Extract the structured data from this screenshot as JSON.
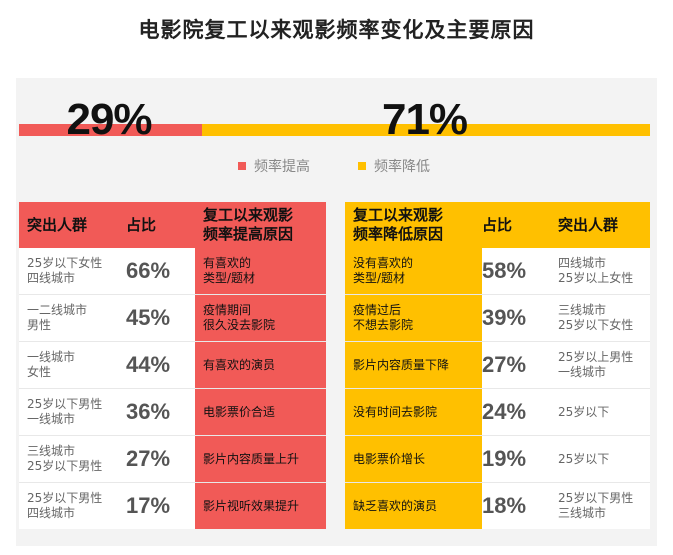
{
  "title": "电影院复工以来观影频率变化及主要原因",
  "chart_data": {
    "type": "bar",
    "orientation": "horizontal-stacked",
    "series": [
      {
        "name": "频率提高",
        "value": 29,
        "label": "29%",
        "color": "#f15a57"
      },
      {
        "name": "频率降低",
        "value": 71,
        "label": "71%",
        "color": "#ffc000"
      }
    ],
    "xlim": [
      0,
      100
    ],
    "legend_placement": "center"
  },
  "legend": [
    {
      "label": "频率提高",
      "color": "#f15a57"
    },
    {
      "label": "频率降低",
      "color": "#ffc000"
    }
  ],
  "left_table": {
    "headers": {
      "group": "突出人群",
      "share": "占比",
      "reason": "复工以来观影\n频率提高原因"
    },
    "rows": [
      {
        "group": "25岁以下女性\n四线城市",
        "share": "66%",
        "reason": "有喜欢的\n类型/题材"
      },
      {
        "group": "一二线城市\n男性",
        "share": "45%",
        "reason": "疫情期间\n很久没去影院"
      },
      {
        "group": "一线城市\n女性",
        "share": "44%",
        "reason": "有喜欢的演员"
      },
      {
        "group": "25岁以下男性\n一线城市",
        "share": "36%",
        "reason": "电影票价合适"
      },
      {
        "group": "三线城市\n25岁以下男性",
        "share": "27%",
        "reason": "影片内容质量上升"
      },
      {
        "group": "25岁以下男性\n四线城市",
        "share": "17%",
        "reason": "影片视听效果提升"
      }
    ]
  },
  "right_table": {
    "headers": {
      "reason": "复工以来观影\n频率降低原因",
      "share": "占比",
      "group": "突出人群"
    },
    "rows": [
      {
        "reason": "没有喜欢的\n类型/题材",
        "share": "58%",
        "group": "四线城市\n25岁以上女性"
      },
      {
        "reason": "疫情过后\n不想去影院",
        "share": "39%",
        "group": "三线城市\n25岁以下女性"
      },
      {
        "reason": "影片内容质量下降",
        "share": "27%",
        "group": "25岁以上男性\n一线城市"
      },
      {
        "reason": "没有时间去影院",
        "share": "24%",
        "group": "25岁以下"
      },
      {
        "reason": "电影票价增长",
        "share": "19%",
        "group": "25岁以下"
      },
      {
        "reason": "缺乏喜欢的演员",
        "share": "18%",
        "group": "25岁以下男性\n三线城市"
      }
    ]
  },
  "colors": {
    "red": "#f15a57",
    "yellow": "#ffc000",
    "panel": "#f3f3f3"
  }
}
